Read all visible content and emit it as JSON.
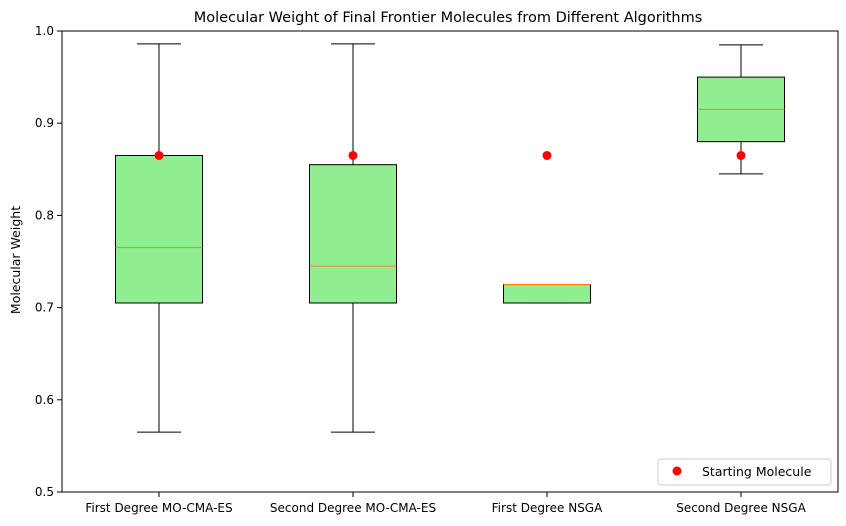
{
  "chart_data": {
    "type": "box",
    "title": "Molecular Weight of Final Frontier Molecules from Different Algorithms",
    "xlabel": "",
    "ylabel": "Molecular Weight",
    "ylim": [
      0.5,
      1.0
    ],
    "yticks": [
      "0.5",
      "0.6",
      "0.7",
      "0.8",
      "0.9",
      "1.0"
    ],
    "yticks_values": [
      0.5,
      0.6,
      0.7,
      0.8,
      0.9,
      1.0
    ],
    "categories": [
      "First Degree MO-CMA-ES",
      "Second Degree MO-CMA-ES",
      "First Degree NSGA",
      "Second Degree NSGA"
    ],
    "boxes": [
      {
        "whisker_low": 0.565,
        "q1": 0.705,
        "median": 0.765,
        "q3": 0.865,
        "whisker_high": 0.986
      },
      {
        "whisker_low": 0.565,
        "q1": 0.705,
        "median": 0.745,
        "q3": 0.855,
        "whisker_high": 0.986
      },
      {
        "whisker_low": 0.705,
        "q1": 0.705,
        "median": 0.725,
        "q3": 0.725,
        "whisker_high": 0.725
      },
      {
        "whisker_low": 0.845,
        "q1": 0.88,
        "median": 0.915,
        "q3": 0.95,
        "whisker_high": 0.985
      }
    ],
    "points": {
      "name": "Starting Molecule",
      "values": [
        0.865,
        0.865,
        0.865,
        0.865
      ]
    },
    "legend": {
      "position": "lower-right",
      "entries": [
        "Starting Molecule"
      ]
    },
    "grid": false,
    "colors": {
      "box_fill": "#90ee90",
      "median": "#ff7f0e",
      "point": "#ff0000",
      "edge": "#000000"
    }
  }
}
